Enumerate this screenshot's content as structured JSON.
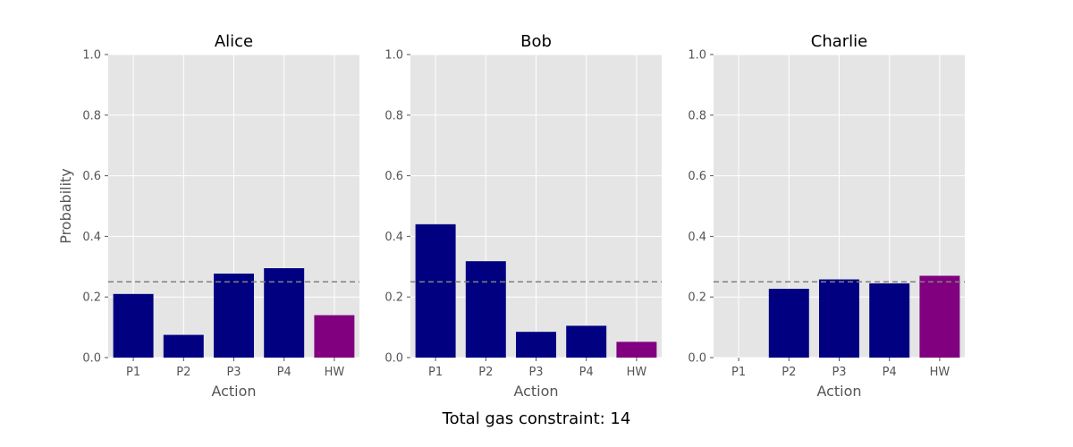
{
  "chart_data": {
    "type": "bar",
    "suptitle": "Total gas constraint: 14",
    "categories": [
      "P1",
      "P2",
      "P3",
      "P4",
      "HW"
    ],
    "ylim": [
      0,
      1.0
    ],
    "yticks": [
      0.0,
      0.2,
      0.4,
      0.6,
      0.8,
      1.0
    ],
    "ytick_labels": [
      "0.0",
      "0.2",
      "0.4",
      "0.6",
      "0.8",
      "1.0"
    ],
    "reference_line": {
      "value": 0.25,
      "style": "dashed",
      "color": "#808080"
    },
    "colors": {
      "P1": "#000080",
      "P2": "#000080",
      "P3": "#000080",
      "P4": "#000080",
      "HW": "#800080"
    },
    "background": "#e5e5e5",
    "grid": true,
    "panels": [
      {
        "title": "Alice",
        "xlabel": "Action",
        "ylabel": "Probability",
        "values": [
          0.21,
          0.075,
          0.277,
          0.295,
          0.14
        ]
      },
      {
        "title": "Bob",
        "xlabel": "Action",
        "ylabel": "",
        "values": [
          0.44,
          0.318,
          0.085,
          0.105,
          0.052
        ]
      },
      {
        "title": "Charlie",
        "xlabel": "Action",
        "ylabel": "",
        "values": [
          0.0,
          0.227,
          0.258,
          0.245,
          0.27
        ]
      }
    ]
  }
}
